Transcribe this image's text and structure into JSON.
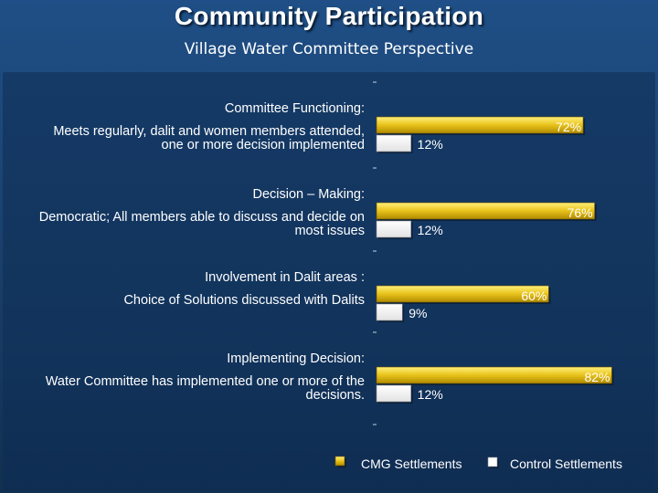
{
  "title": "Community Participation",
  "subtitle": "Village Water Committee Perspective",
  "chart_data": {
    "type": "bar",
    "orientation": "horizontal",
    "categories": [
      {
        "heading": "Committee Functioning:",
        "detail": "Meets regularly, dalit and women members attended, one or more decision implemented",
        "detail_lines": [
          "Meets regularly, dalit and women members attended,",
          "one or more decision implemented"
        ]
      },
      {
        "heading": "Decision – Making:",
        "detail": "Democratic; All members able to discuss and decide on most issues",
        "detail_lines": [
          "Democratic; All members able to discuss and decide on",
          "most issues"
        ]
      },
      {
        "heading": "Involvement in Dalit areas :",
        "detail": "Choice of Solutions discussed with Dalits",
        "detail_lines": [
          "Choice of Solutions discussed with Dalits"
        ]
      },
      {
        "heading": "Implementing Decision:",
        "detail": "Water Committee has implemented one or more of the decisions.",
        "detail_lines": [
          "Water Committee has implemented one or more of the",
          "decisions."
        ]
      }
    ],
    "series": [
      {
        "name": "CMG Settlements",
        "values": [
          72,
          76,
          60,
          82
        ],
        "labels": [
          "72%",
          "76%",
          "60%",
          "82%"
        ],
        "color": "#e8c21a"
      },
      {
        "name": "Control Settlements",
        "values": [
          12,
          12,
          9,
          12
        ],
        "labels": [
          "12%",
          "12%",
          "9%",
          "12%"
        ],
        "color": "#ffffff"
      }
    ],
    "unit": "%",
    "xlim": [
      0,
      100
    ],
    "grid": false,
    "legend": "bottom"
  }
}
